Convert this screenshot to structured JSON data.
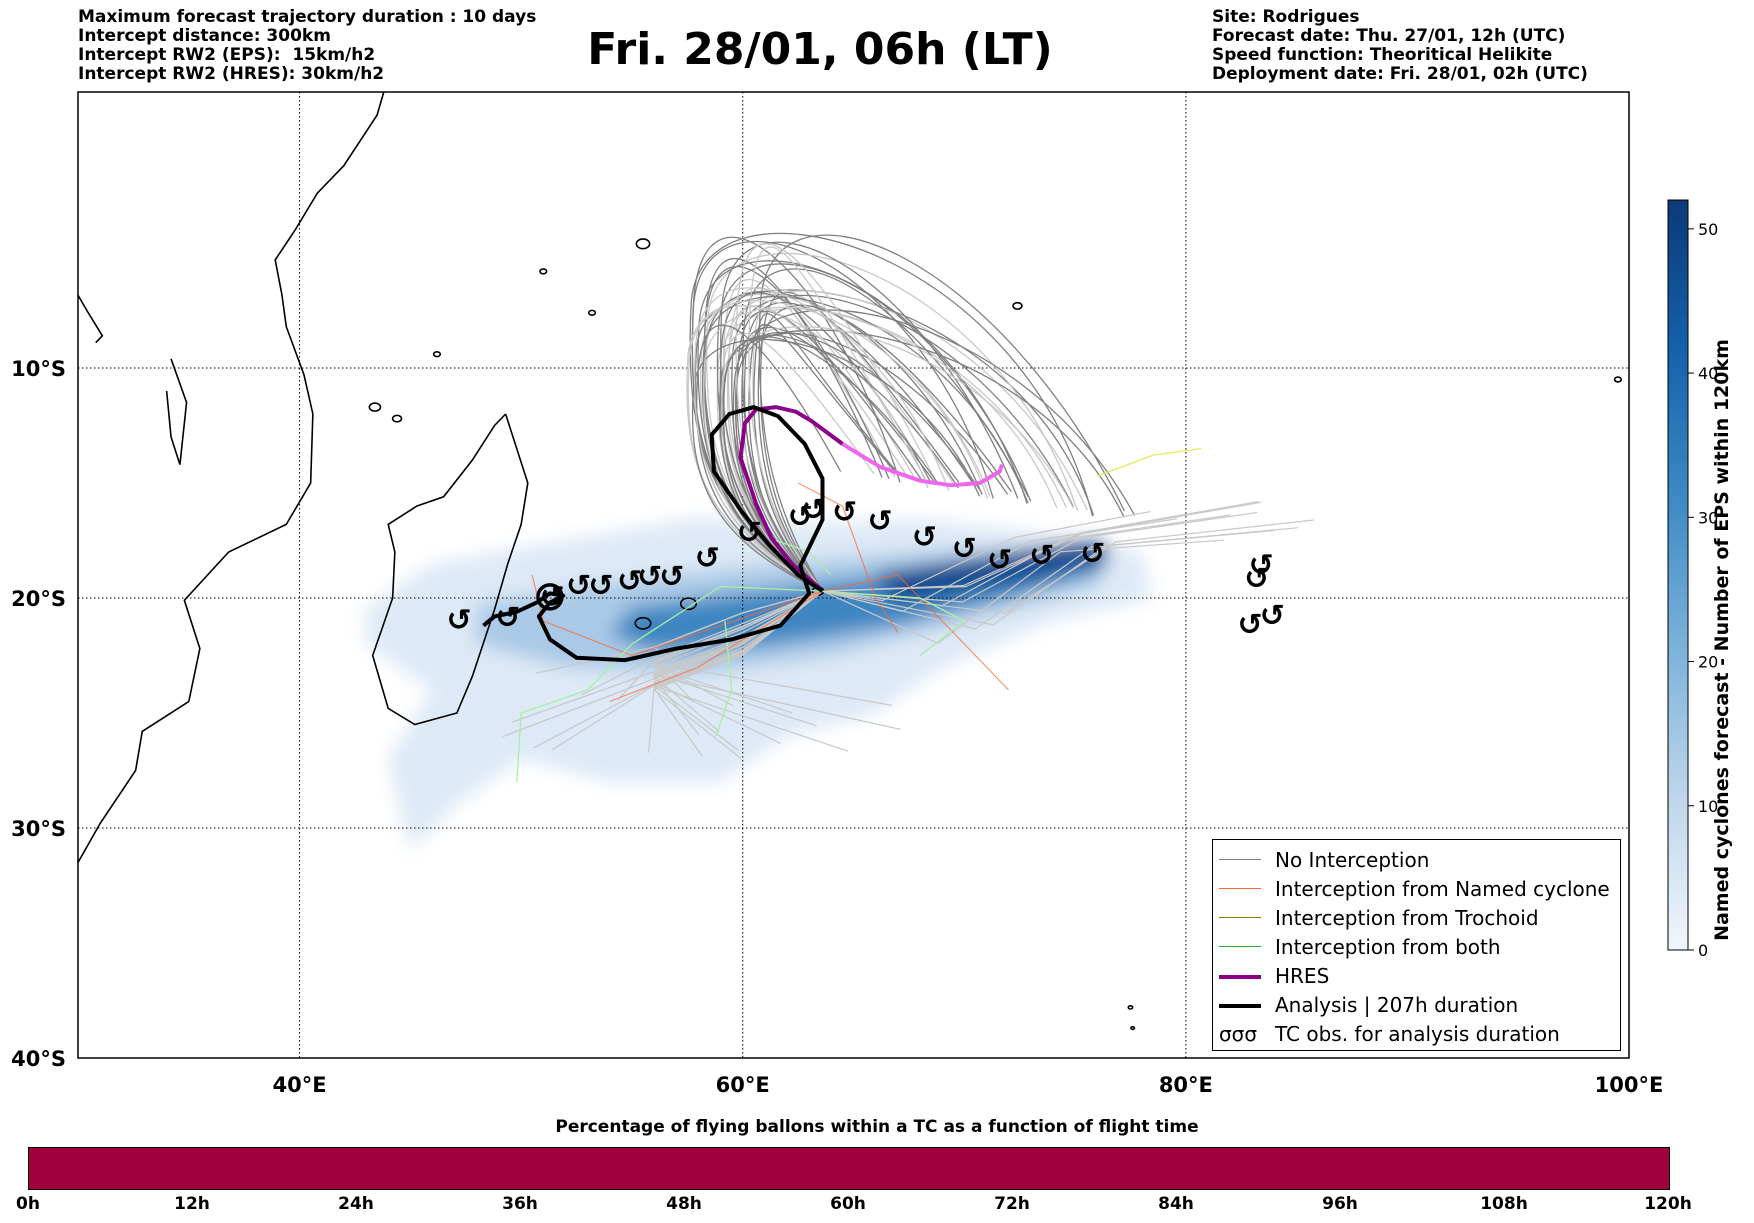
{
  "header": {
    "left_lines": [
      "Maximum forecast trajectory duration : 10 days",
      "Intercept distance: 300km",
      "Intercept RW2 (EPS):  15km/h2",
      "Intercept RW2 (HRES): 30km/h2"
    ],
    "title": "Fri. 28/01, 06h (LT)",
    "right_lines": [
      "Site: Rodrigues",
      "Forecast date: Thu. 27/01, 12h (UTC)",
      "Speed function: Theoritical Helikite",
      "Deployment date: Fri. 28/01, 02h (UTC)"
    ]
  },
  "map": {
    "lon_range": [
      30,
      100
    ],
    "lat_range": [
      -40,
      2
    ],
    "lon_ticks": [
      {
        "value": 40,
        "label": "40°E"
      },
      {
        "value": 60,
        "label": "60°E"
      },
      {
        "value": 80,
        "label": "80°E"
      },
      {
        "value": 100,
        "label": "100°E"
      }
    ],
    "lat_ticks": [
      {
        "value": -10,
        "label": "10°S"
      },
      {
        "value": -20,
        "label": "20°S"
      },
      {
        "value": -30,
        "label": "30°S"
      },
      {
        "value": -40,
        "label": "40°S"
      }
    ],
    "grid": true,
    "tc_symbol": "↺",
    "colors": {
      "no_interception": "#808080",
      "no_interception_light": "#c8c8c8",
      "named_cyclone": "#ff6633",
      "trochoid": "#808000",
      "both": "#33aa33",
      "both_light": "#a8f0a0",
      "hres": "#8b008b",
      "hres_light": "#ee66ee",
      "analysis": "#000000",
      "density_low": "#dce9f6",
      "density_high": "#0b3a78"
    }
  },
  "chart_data": {
    "type": "map",
    "analysis_track": [
      [
        63.6,
        -19.7
      ],
      [
        62.5,
        -19.0
      ],
      [
        61.2,
        -17.7
      ],
      [
        60.0,
        -16.3
      ],
      [
        58.7,
        -14.5
      ],
      [
        58.6,
        -12.9
      ],
      [
        59.4,
        -12.0
      ],
      [
        60.5,
        -11.7
      ],
      [
        61.6,
        -12.1
      ],
      [
        62.8,
        -13.3
      ],
      [
        63.6,
        -14.8
      ],
      [
        63.6,
        -16.6
      ],
      [
        62.6,
        -18.6
      ],
      [
        63.0,
        -19.8
      ],
      [
        61.7,
        -21.2
      ],
      [
        59.5,
        -21.8
      ],
      [
        57.0,
        -22.2
      ],
      [
        54.7,
        -22.7
      ],
      [
        52.5,
        -22.6
      ],
      [
        51.3,
        -21.8
      ],
      [
        50.8,
        -20.8
      ],
      [
        51.3,
        -20.2
      ],
      [
        51.9,
        -19.9
      ],
      [
        51.3,
        -19.8
      ],
      [
        50.7,
        -20.2
      ],
      [
        49.8,
        -20.6
      ],
      [
        48.8,
        -20.8
      ],
      [
        48.3,
        -21.2
      ]
    ],
    "hres_track": [
      [
        63.5,
        -19.6
      ],
      [
        62.3,
        -18.6
      ],
      [
        61.3,
        -17.4
      ],
      [
        60.6,
        -15.9
      ],
      [
        59.9,
        -13.9
      ],
      [
        60.1,
        -12.4
      ],
      [
        60.6,
        -11.8
      ],
      [
        61.5,
        -11.7
      ],
      [
        62.4,
        -11.9
      ],
      [
        63.1,
        -12.3
      ],
      [
        64.5,
        -13.3
      ],
      [
        66.2,
        -14.3
      ],
      [
        68.0,
        -14.9
      ],
      [
        69.4,
        -15.1
      ],
      [
        70.7,
        -15.0
      ],
      [
        71.6,
        -14.5
      ],
      [
        71.7,
        -14.2
      ]
    ],
    "tc_obs": [
      [
        47.2,
        -21.0
      ],
      [
        49.4,
        -20.9
      ],
      [
        51.4,
        -20.0
      ],
      [
        52.6,
        -19.5
      ],
      [
        53.6,
        -19.5
      ],
      [
        54.9,
        -19.3
      ],
      [
        55.8,
        -19.1
      ],
      [
        56.8,
        -19.1
      ],
      [
        58.4,
        -18.3
      ],
      [
        60.3,
        -17.2
      ],
      [
        62.6,
        -16.5
      ],
      [
        63.2,
        -16.2
      ],
      [
        64.6,
        -16.3
      ],
      [
        66.2,
        -16.7
      ],
      [
        68.2,
        -17.4
      ],
      [
        70.0,
        -17.9
      ],
      [
        71.6,
        -18.4
      ],
      [
        73.5,
        -18.2
      ],
      [
        75.8,
        -18.1
      ],
      [
        83.4,
        -18.6
      ],
      [
        83.2,
        -19.2
      ],
      [
        82.9,
        -21.2
      ],
      [
        83.9,
        -20.8
      ]
    ],
    "density_colorbar": {
      "min": 0,
      "max": 52,
      "ticks": [
        0,
        10,
        20,
        30,
        40,
        50
      ],
      "label": "Named cyclones forecast - Number of EPS within 120km"
    }
  },
  "legend": {
    "items": [
      {
        "label": "No Interception",
        "style": "no_interception"
      },
      {
        "label": "Interception from Named cyclone",
        "style": "named_cyclone"
      },
      {
        "label": "Interception from Trochoid",
        "style": "trochoid"
      },
      {
        "label": "Interception from both",
        "style": "both"
      },
      {
        "label": "HRES",
        "style": "hres"
      },
      {
        "label": "Analysis | 207h duration",
        "style": "analysis"
      },
      {
        "label": "TC obs. for analysis duration",
        "style": "tc_obs",
        "symbol": "σσσ"
      }
    ]
  },
  "colorbar": {
    "ticks": [
      "0",
      "10",
      "20",
      "30",
      "40",
      "50"
    ],
    "label": "Named cyclones forecast - Number of EPS within 120km"
  },
  "bottom": {
    "title": "Percentage of flying ballons within a TC as a function of flight time",
    "bar_color": "#a0003c",
    "time_labels": [
      "0h",
      "12h",
      "24h",
      "36h",
      "48h",
      "60h",
      "72h",
      "84h",
      "96h",
      "108h",
      "120h"
    ]
  }
}
